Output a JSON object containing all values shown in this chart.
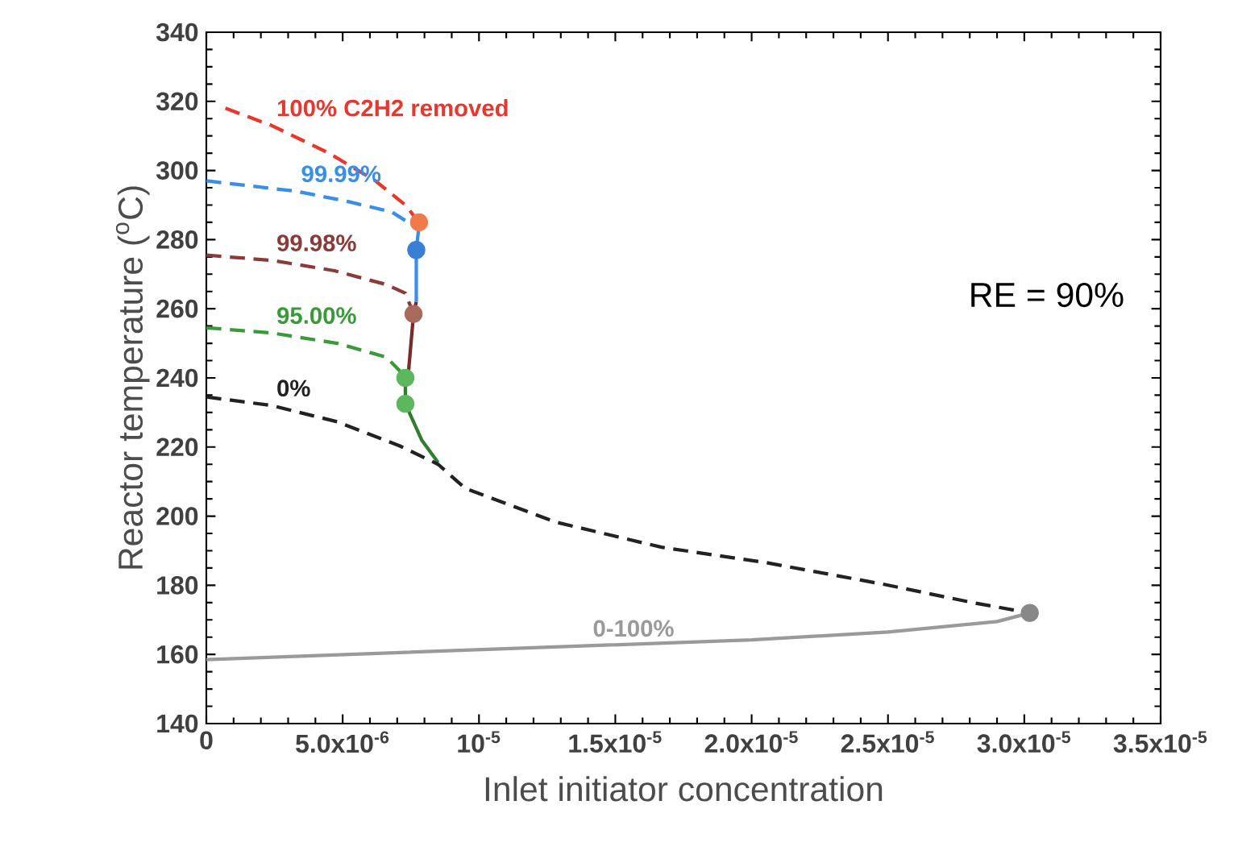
{
  "chart_data": {
    "type": "line",
    "xlabel": "Inlet initiator concentration",
    "ylabel": "Reactor temperature ($^{o}$C)",
    "annotations": [
      "RE = 90%"
    ],
    "xlim": [
      0,
      3.5e-05
    ],
    "ylim": [
      140,
      340
    ],
    "xticks": [
      0,
      {
        "value": 5e-06,
        "label": "5.0x10$^{-6}$"
      },
      {
        "value": 1e-05,
        "label": "10$^{-5}$"
      },
      {
        "value": 1.5e-05,
        "label": "1.5x10$^{-5}$"
      },
      {
        "value": 2e-05,
        "label": "2.0x10$^{-5}$"
      },
      {
        "value": 2.5e-05,
        "label": "2.5x10$^{-5}$"
      },
      {
        "value": 3e-05,
        "label": "3.0x10$^{-5}$"
      },
      {
        "value": 3.5e-05,
        "label": "3.5x10$^{-5}$"
      }
    ],
    "yticks": [
      140,
      160,
      180,
      200,
      220,
      240,
      260,
      280,
      300,
      320,
      340
    ],
    "grid": false,
    "legend": false,
    "series": [
      {
        "name": "100% C2H2 removed",
        "type": "line",
        "line_style": "dashed",
        "marker": "none",
        "color": "#e8372c",
        "x": [
          7e-07,
          2.4e-06,
          4.5e-06,
          6.2e-06,
          7.3e-06,
          7.8e-06
        ],
        "values": [
          318,
          313,
          305,
          297,
          290,
          285
        ]
      },
      {
        "name": "99.99%",
        "type": "line",
        "line_style": "dashed",
        "marker": "none",
        "color": "#3a8ee6",
        "x": [
          0,
          3.3e-06,
          5.2e-06,
          6.8e-06,
          7.4e-06,
          7.8e-06
        ],
        "values": [
          297,
          294,
          291,
          288,
          285,
          284
        ]
      },
      {
        "type": "line",
        "line_style": "solid",
        "marker": "none",
        "color": "#3a8ee6",
        "x": [
          7.8e-06,
          7.7e-06,
          7.7e-06
        ],
        "values": [
          284,
          277,
          262
        ]
      },
      {
        "name": "99.98%",
        "type": "line",
        "line_style": "dashed",
        "marker": "none",
        "color": "#8b3a3a",
        "x": [
          0,
          2.4e-06,
          4.7e-06,
          6.6e-06,
          7.3e-06,
          7.6e-06
        ],
        "values": [
          275.5,
          274,
          271,
          267,
          264.5,
          258.5
        ]
      },
      {
        "type": "line",
        "line_style": "solid",
        "marker": "none",
        "color": "#7a2a2a",
        "x": [
          7.7e-06,
          7.6e-06,
          7.4e-06
        ],
        "values": [
          262,
          258.5,
          240.5
        ]
      },
      {
        "name": "95.00%",
        "type": "line",
        "line_style": "dashed",
        "marker": "none",
        "color": "#3a9a3a",
        "x": [
          0,
          2.4e-06,
          4.8e-06,
          6.6e-06,
          7.1e-06,
          7.3e-06
        ],
        "values": [
          254.5,
          253,
          250,
          246,
          242,
          240
        ]
      },
      {
        "type": "line",
        "line_style": "solid",
        "marker": "none",
        "color": "#2f7f2f",
        "x": [
          7.3e-06,
          7.3e-06,
          7.9e-06,
          8.5e-06
        ],
        "values": [
          240,
          232.5,
          222,
          215.5
        ]
      },
      {
        "name": "0%",
        "type": "line",
        "line_style": "dashed",
        "marker": "none",
        "color": "#222222",
        "x": [
          0,
          2.4e-06,
          4.8e-06,
          7.1e-06,
          8.5e-06,
          9.5e-06,
          1.28e-05,
          1.67e-05,
          2.05e-05,
          2.49e-05,
          2.81e-05,
          3.02e-05
        ],
        "values": [
          234.5,
          232,
          227.3,
          220.3,
          215,
          208,
          198.3,
          191,
          186.6,
          180.2,
          175,
          172
        ]
      },
      {
        "name": "0-100%",
        "type": "line",
        "line_style": "solid",
        "marker": "none",
        "color": "#9a9a9a",
        "x": [
          0,
          1.4e-05,
          2e-05,
          2.5e-05,
          2.9e-05,
          3.02e-05
        ],
        "values": [
          158.5,
          162.5,
          164.2,
          166.5,
          169.5,
          172
        ]
      },
      {
        "type": "scatter",
        "marker": "circle",
        "color": "#f07a4a",
        "x": [
          7.8e-06
        ],
        "values": [
          285
        ]
      },
      {
        "type": "scatter",
        "marker": "circle",
        "color": "#3a7fd6",
        "x": [
          7.7e-06
        ],
        "values": [
          277
        ]
      },
      {
        "type": "scatter",
        "marker": "circle",
        "color": "#a86a5a",
        "x": [
          7.6e-06
        ],
        "values": [
          258.5
        ]
      },
      {
        "type": "scatter",
        "marker": "circle",
        "color": "#5cb85c",
        "x": [
          7.3e-06,
          7.3e-06
        ],
        "values": [
          240,
          232.5
        ]
      },
      {
        "type": "scatter",
        "marker": "circle",
        "color": "#888888",
        "x": [
          3.02e-05
        ],
        "values": [
          172
        ]
      }
    ]
  }
}
